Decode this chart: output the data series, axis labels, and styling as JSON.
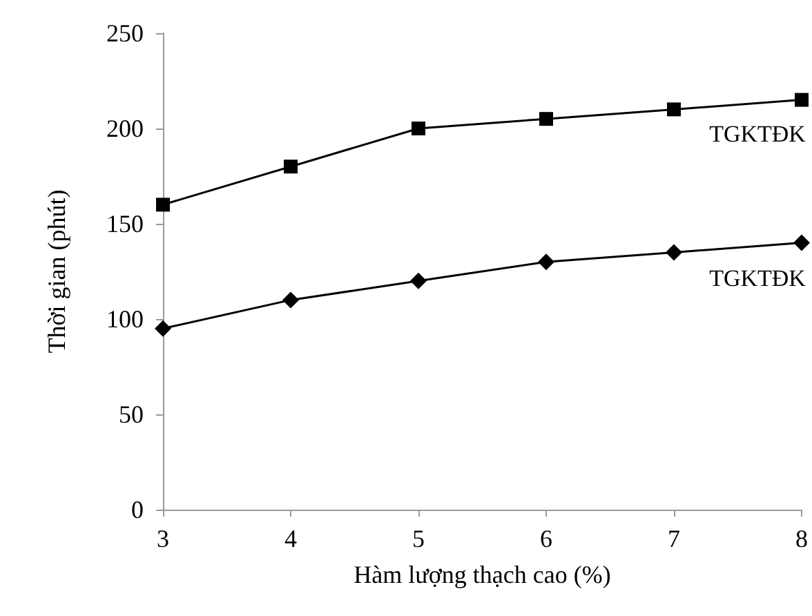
{
  "chart_data": {
    "type": "line",
    "xlabel": "Hàm lượng thạch cao (%)",
    "ylabel": "Thời gian (phút)",
    "x": [
      3,
      4,
      5,
      6,
      7,
      8
    ],
    "series": [
      {
        "name": "TGKTĐK",
        "color": "#000000",
        "marker": "square",
        "values": [
          160,
          180,
          200,
          205,
          210,
          215
        ]
      },
      {
        "name": "TGKTĐK",
        "color": "#000000",
        "marker": "diamond",
        "values": [
          95,
          110,
          120,
          130,
          135,
          140
        ]
      }
    ],
    "xlim": [
      3,
      8
    ],
    "xticks": [
      3,
      4,
      5,
      6,
      7,
      8
    ],
    "ylim": [
      0,
      250
    ],
    "yticks": [
      0,
      50,
      100,
      150,
      200,
      250
    ],
    "grid": false,
    "line_style": "solid"
  }
}
